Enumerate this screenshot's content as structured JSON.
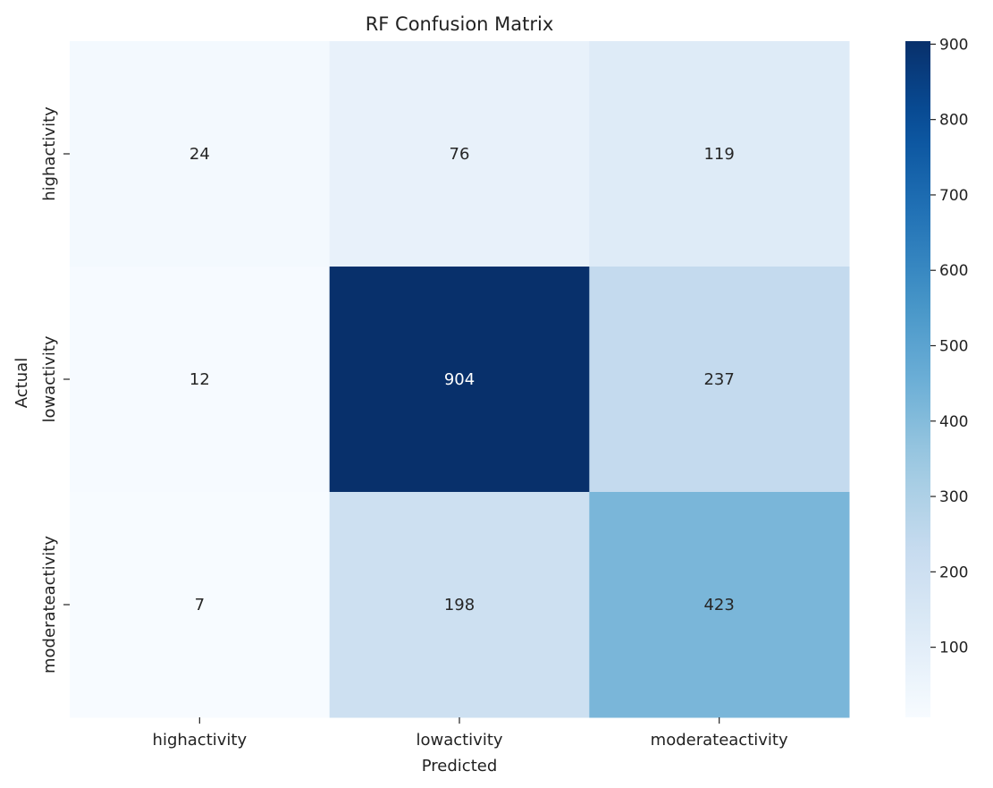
{
  "chart_data": {
    "type": "heatmap",
    "title": "RF Confusion Matrix",
    "xlabel": "Predicted",
    "ylabel": "Actual",
    "x_categories": [
      "highactivity",
      "lowactivity",
      "moderateactivity"
    ],
    "y_categories": [
      "highactivity",
      "lowactivity",
      "moderateactivity"
    ],
    "values": [
      [
        24,
        76,
        119
      ],
      [
        12,
        904,
        237
      ],
      [
        7,
        198,
        423
      ]
    ],
    "colormap": "Blues",
    "colorbar": {
      "range": [
        7,
        904
      ],
      "ticks": [
        100,
        200,
        300,
        400,
        500,
        600,
        700,
        800,
        900
      ]
    },
    "grid": false
  }
}
